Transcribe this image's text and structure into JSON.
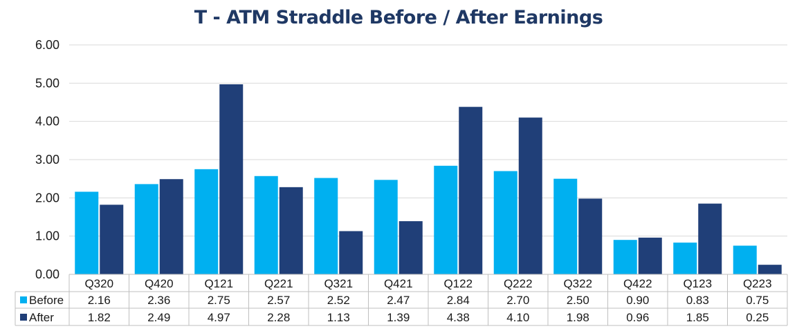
{
  "chart_data": {
    "type": "bar",
    "title": "T - ATM Straddle Before / After Earnings",
    "categories": [
      "Q320",
      "Q420",
      "Q121",
      "Q221",
      "Q321",
      "Q421",
      "Q122",
      "Q222",
      "Q322",
      "Q422",
      "Q123",
      "Q223"
    ],
    "series": [
      {
        "name": "Before",
        "color": "#00b0f0",
        "values": [
          2.16,
          2.36,
          2.75,
          2.57,
          2.52,
          2.47,
          2.84,
          2.7,
          2.5,
          0.9,
          0.83,
          0.75
        ],
        "labels": [
          "2.16",
          "2.36",
          "2.75",
          "2.57",
          "2.52",
          "2.47",
          "2.84",
          "2.70",
          "2.50",
          "0.90",
          "0.83",
          "0.75"
        ]
      },
      {
        "name": "After",
        "color": "#203f78",
        "values": [
          1.82,
          2.49,
          4.97,
          2.28,
          1.13,
          1.39,
          4.38,
          4.1,
          1.98,
          0.96,
          1.85,
          0.25
        ],
        "labels": [
          "1.82",
          "2.49",
          "4.97",
          "2.28",
          "1.13",
          "1.39",
          "4.38",
          "4.10",
          "1.98",
          "0.96",
          "1.85",
          "0.25"
        ]
      }
    ],
    "ylim": [
      0,
      6
    ],
    "yticks": [
      "0.00",
      "1.00",
      "2.00",
      "3.00",
      "4.00",
      "5.00",
      "6.00"
    ],
    "grid": true,
    "legend": "data-table",
    "title_color": "#1f3864"
  }
}
